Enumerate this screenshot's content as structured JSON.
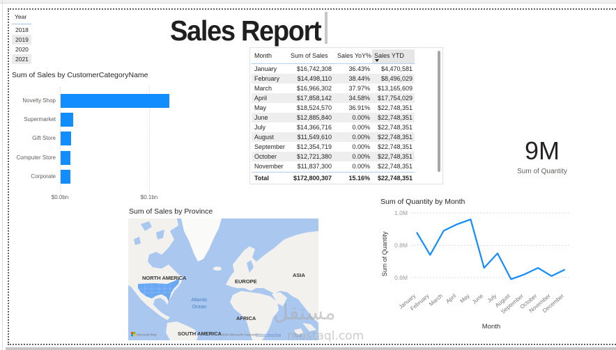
{
  "report": {
    "title": "Sales Report"
  },
  "year_slicer": {
    "header": "Year",
    "items": [
      "2018",
      "2019",
      "2020",
      "2021"
    ]
  },
  "bar_chart": {
    "title": "Sum of Sales by CustomerCategoryName",
    "categories": [
      "Novelty Shop",
      "Supermarket",
      "Gift Store",
      "Computer Store",
      "Corporate"
    ],
    "x_ticks": [
      "$0.0bn",
      "$0.1bn"
    ]
  },
  "table": {
    "columns": [
      "Month",
      "Sum of Sales",
      "Sales YoY%",
      "Sales YTD"
    ],
    "sorted_column": "Sales YTD",
    "rows": [
      {
        "month": "January",
        "sales": "$16,742,308",
        "yoy": "36.43%",
        "ytd": "$4,470,581"
      },
      {
        "month": "February",
        "sales": "$14,498,110",
        "yoy": "38.44%",
        "ytd": "$8,496,029"
      },
      {
        "month": "March",
        "sales": "$16,966,302",
        "yoy": "37.97%",
        "ytd": "$13,165,609"
      },
      {
        "month": "April",
        "sales": "$17,858,142",
        "yoy": "34.58%",
        "ytd": "$17,754,029"
      },
      {
        "month": "May",
        "sales": "$18,524,570",
        "yoy": "36.91%",
        "ytd": "$22,748,351"
      },
      {
        "month": "June",
        "sales": "$12,885,840",
        "yoy": "0.00%",
        "ytd": "$22,748,351"
      },
      {
        "month": "July",
        "sales": "$14,366,716",
        "yoy": "0.00%",
        "ytd": "$22,748,351"
      },
      {
        "month": "August",
        "sales": "$11,549,610",
        "yoy": "0.00%",
        "ytd": "$22,748,351"
      },
      {
        "month": "September",
        "sales": "$12,354,719",
        "yoy": "0.00%",
        "ytd": "$22,748,351"
      },
      {
        "month": "October",
        "sales": "$12,721,380",
        "yoy": "0.00%",
        "ytd": "$22,748,351"
      },
      {
        "month": "November",
        "sales": "$11,837,300",
        "yoy": "0.00%",
        "ytd": "$22,748,351"
      }
    ],
    "total": {
      "label": "Total",
      "sales": "$172,800,307",
      "yoy": "15.16%",
      "ytd": "$22,748,351"
    }
  },
  "kpi_card": {
    "value": "9M",
    "label": "Sum of Quantity"
  },
  "map": {
    "title": "Sum of Sales by Province",
    "labels": {
      "north_america": "NORTH AMERICA",
      "europe": "EUROPE",
      "asia": "ASIA",
      "atlantic_1": "Atlantic",
      "atlantic_2": "Ocean",
      "africa": "AFRICA",
      "south_america": "SOUTH AMERICA"
    },
    "attribution": {
      "brand": "Microsoft Bing",
      "copyright": "© 2024 Microsoft Corporation,",
      "osm": "© OpenStreetMap",
      "terms": "Terms"
    }
  },
  "line_chart": {
    "title": "Sum of Quantity by Month",
    "y_ticks": [
      "1.0M",
      "0.8M",
      "0.6M"
    ],
    "y_axis_title": "Sum of Quantity",
    "x_axis_title": "Month",
    "months": [
      "January",
      "February",
      "March",
      "April",
      "May",
      "June",
      "July",
      "August",
      "September",
      "October",
      "November",
      "December"
    ]
  },
  "watermark": {
    "arabic": "مستقل",
    "latin": "mostaql.com"
  },
  "colors": {
    "accent": "#118DFF",
    "map_water": "#a9c7ef",
    "map_land": "#f2f1ee",
    "map_highlight": "#6aa8f3",
    "row_band": "#eeeeee"
  },
  "chart_data": [
    {
      "type": "bar",
      "orientation": "horizontal",
      "title": "Sum of Sales by CustomerCategoryName",
      "categories": [
        "Novelty Shop",
        "Supermarket",
        "Gift Store",
        "Computer Store",
        "Corporate"
      ],
      "values": [
        0.1225,
        0.0141,
        0.0115,
        0.0112,
        0.011
      ],
      "unit": "$bn",
      "xlabel": "",
      "ylabel": "",
      "x_ticks": [
        "$0.0bn",
        "$0.1bn"
      ],
      "xlim": [
        0,
        0.13
      ],
      "grid": true,
      "legend": "none"
    },
    {
      "type": "line",
      "title": "Sum of Quantity by Month",
      "x": [
        "January",
        "February",
        "March",
        "April",
        "May",
        "June",
        "July",
        "August",
        "September",
        "October",
        "November",
        "December"
      ],
      "values": [
        0.88,
        0.74,
        0.89,
        0.93,
        0.96,
        0.66,
        0.75,
        0.59,
        0.62,
        0.66,
        0.61,
        0.65
      ],
      "unit": "M",
      "xlabel": "Month",
      "ylabel": "Sum of Quantity",
      "y_ticks": [
        "0.6M",
        "0.8M",
        "1.0M"
      ],
      "ylim": [
        0.6,
        1.0
      ],
      "grid": true,
      "legend": "none"
    },
    {
      "type": "table",
      "columns": [
        "Month",
        "Sum of Sales",
        "Sales YoY%",
        "Sales YTD"
      ],
      "rows": [
        [
          "January",
          16742308,
          36.43,
          4470581
        ],
        [
          "February",
          14498110,
          38.44,
          8496029
        ],
        [
          "March",
          16966302,
          37.97,
          13165609
        ],
        [
          "April",
          17858142,
          34.58,
          17754029
        ],
        [
          "May",
          18524570,
          36.91,
          22748351
        ],
        [
          "June",
          12885840,
          0.0,
          22748351
        ],
        [
          "July",
          14366716,
          0.0,
          22748351
        ],
        [
          "August",
          11549610,
          0.0,
          22748351
        ],
        [
          "September",
          12354719,
          0.0,
          22748351
        ],
        [
          "October",
          12721380,
          0.0,
          22748351
        ],
        [
          "November",
          11837300,
          0.0,
          22748351
        ]
      ],
      "total": [
        "Total",
        172800307,
        15.16,
        22748351
      ]
    }
  ]
}
